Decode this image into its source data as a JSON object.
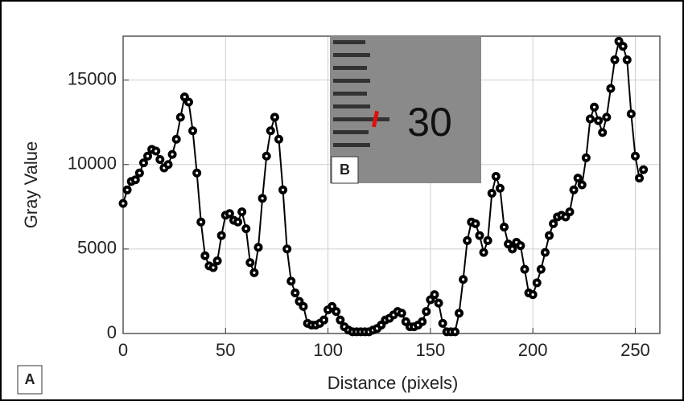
{
  "chart_data": {
    "type": "line",
    "xlabel": "Distance (pixels)",
    "ylabel": "Gray Value",
    "panel_label": "A",
    "inset": {
      "label": "B",
      "text": "30"
    },
    "x": [
      0,
      2,
      4,
      6,
      8,
      10,
      12,
      14,
      16,
      18,
      20,
      22,
      24,
      26,
      28,
      30,
      32,
      34,
      36,
      38,
      40,
      42,
      44,
      46,
      48,
      50,
      52,
      54,
      56,
      58,
      60,
      62,
      64,
      66,
      68,
      70,
      72,
      74,
      76,
      78,
      80,
      82,
      84,
      86,
      88,
      90,
      92,
      94,
      96,
      98,
      100,
      102,
      104,
      106,
      108,
      110,
      112,
      114,
      116,
      118,
      120,
      122,
      124,
      126,
      128,
      130,
      132,
      134,
      136,
      138,
      140,
      142,
      144,
      146,
      148,
      150,
      152,
      154,
      156,
      158,
      160,
      162,
      164,
      166,
      168,
      170,
      172,
      174,
      176,
      178,
      180,
      182,
      184,
      186,
      188,
      190,
      192,
      194,
      196,
      198,
      200,
      202,
      204,
      206,
      208,
      210,
      212,
      214,
      216,
      218,
      220,
      222,
      224,
      226,
      228,
      230,
      232,
      234,
      236,
      238,
      240,
      242,
      244,
      246,
      248,
      250,
      252,
      254
    ],
    "series": [
      {
        "name": "Gray Value",
        "color": "#000000",
        "values": [
          7700,
          8500,
          9000,
          9100,
          9500,
          10100,
          10500,
          10900,
          10800,
          10300,
          9800,
          10000,
          10600,
          11500,
          12800,
          14000,
          13700,
          12000,
          9500,
          6600,
          4600,
          4000,
          3900,
          4300,
          5800,
          7000,
          7100,
          6700,
          6600,
          7200,
          6200,
          4200,
          3600,
          5100,
          8000,
          10500,
          12000,
          12800,
          11500,
          8500,
          5000,
          3100,
          2400,
          1900,
          1600,
          600,
          500,
          500,
          600,
          800,
          1400,
          1600,
          1300,
          800,
          400,
          200,
          100,
          100,
          100,
          100,
          100,
          200,
          300,
          500,
          800,
          900,
          1100,
          1300,
          1200,
          700,
          400,
          400,
          500,
          700,
          1300,
          2000,
          2300,
          1800,
          600,
          100,
          100,
          100,
          1200,
          3200,
          5500,
          6600,
          6500,
          5800,
          4800,
          5500,
          8300,
          9300,
          8600,
          6300,
          5300,
          5000,
          5400,
          5200,
          3800,
          2400,
          2300,
          3000,
          3800,
          4800,
          5800,
          6500,
          6900,
          7000,
          6900,
          7200,
          8500,
          9200,
          8800,
          10400,
          12700,
          13400,
          12600,
          11900,
          12800,
          14500,
          16200,
          17300,
          17000,
          16200,
          13000,
          10500,
          9200,
          9700
        ]
      }
    ],
    "xlim": [
      0,
      262
    ],
    "xticks": [
      0,
      50,
      100,
      150,
      200,
      250
    ],
    "ylim": [
      0,
      17600
    ],
    "yticks": [
      0,
      5000,
      10000,
      15000
    ],
    "grid": true
  }
}
